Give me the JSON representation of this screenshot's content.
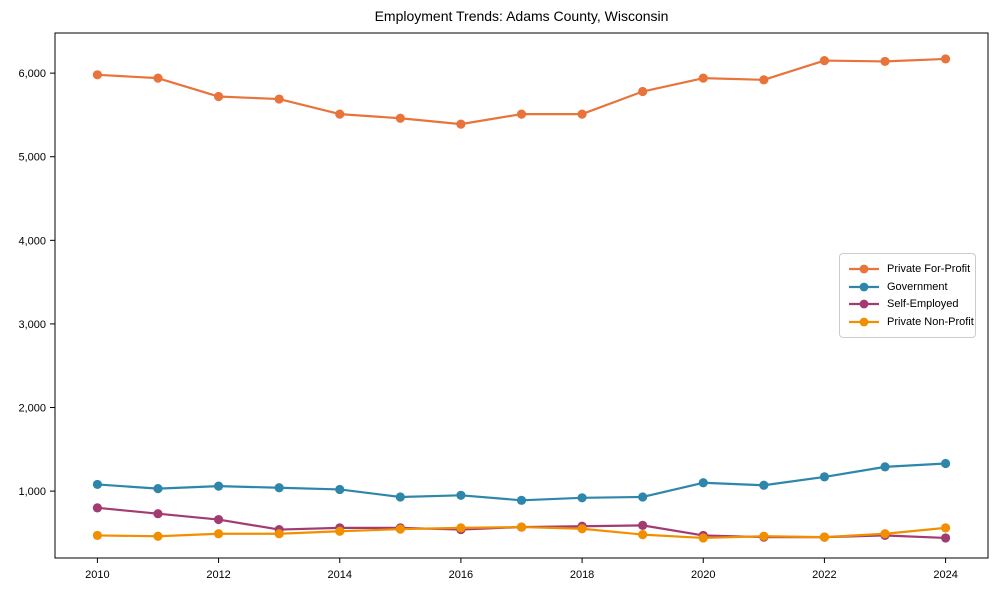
{
  "title": "Employment Trends: Adams County, Wisconsin",
  "colors": {
    "background": "#ffffff",
    "axis": "#000000",
    "legend_border": "#cccccc",
    "series": {
      "private_for_profit": "#E8743B",
      "government": "#2E86AB",
      "self_employed": "#A23B72",
      "private_non_profit": "#F18F01"
    }
  },
  "chart_data": {
    "type": "line",
    "title": "Employment Trends: Adams County, Wisconsin",
    "xlabel": "",
    "ylabel": "",
    "grid": false,
    "legend_position": "center-right",
    "x": [
      2010,
      2011,
      2012,
      2013,
      2014,
      2015,
      2016,
      2017,
      2018,
      2019,
      2020,
      2021,
      2022,
      2023,
      2024
    ],
    "series": [
      {
        "name": "Private For-Profit",
        "color": "#E8743B",
        "values": [
          5980,
          5940,
          5720,
          5690,
          5510,
          5460,
          5390,
          5510,
          5510,
          5780,
          5940,
          5920,
          6150,
          6140,
          6170
        ]
      },
      {
        "name": "Government",
        "color": "#2E86AB",
        "values": [
          1080,
          1030,
          1060,
          1040,
          1020,
          930,
          950,
          890,
          920,
          930,
          1100,
          1070,
          1170,
          1290,
          1330
        ]
      },
      {
        "name": "Self-Employed",
        "color": "#A23B72",
        "values": [
          800,
          730,
          660,
          540,
          560,
          560,
          540,
          570,
          580,
          590,
          470,
          450,
          450,
          470,
          440
        ]
      },
      {
        "name": "Private Non-Profit",
        "color": "#F18F01",
        "values": [
          470,
          460,
          490,
          490,
          520,
          545,
          560,
          570,
          550,
          480,
          440,
          460,
          450,
          490,
          560
        ]
      }
    ],
    "xlim": [
      2009.3,
      2024.7
    ],
    "ylim": [
      200,
      6480
    ],
    "xticks": [
      2010,
      2012,
      2014,
      2016,
      2018,
      2020,
      2022,
      2024
    ],
    "yticks": [
      1000,
      2000,
      3000,
      4000,
      5000,
      6000
    ],
    "ytick_labels": [
      "1,000",
      "2,000",
      "3,000",
      "4,000",
      "5,000",
      "6,000"
    ]
  }
}
